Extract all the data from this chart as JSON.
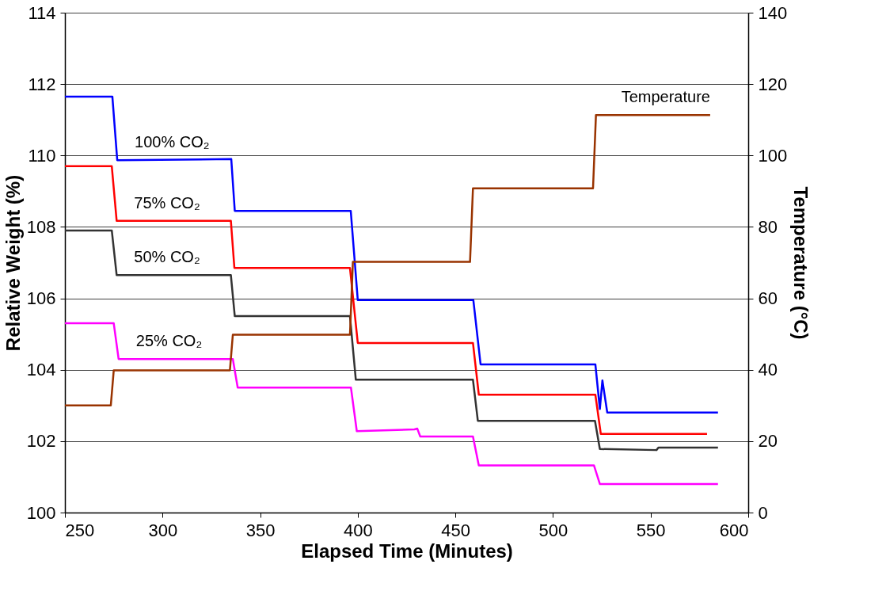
{
  "chart_data": {
    "type": "line",
    "xlabel": "Elapsed Time (Minutes)",
    "ylabel": "Relative Weight (%)",
    "y2label": "Temperature (°C)",
    "xlim": [
      250,
      600
    ],
    "xticks": [
      250,
      300,
      350,
      400,
      450,
      500,
      550,
      600
    ],
    "ylim": [
      100,
      114
    ],
    "yticks": [
      100,
      102,
      104,
      106,
      108,
      110,
      112,
      114
    ],
    "y2lim": [
      0,
      140
    ],
    "y2ticks": [
      0,
      20,
      40,
      60,
      80,
      100,
      120,
      140
    ],
    "grid": "y",
    "legend": false,
    "line_style": "solid",
    "series": [
      {
        "name": "100% CO₂",
        "color": "#0000ff",
        "x": [
          250,
          274.3,
          276.8,
          335.2,
          337,
          396.4,
          400,
          459.2,
          462.9,
          521.7,
          524,
          525.3,
          527.8,
          584.5
        ],
        "values": [
          111.65,
          111.65,
          109.87,
          109.9,
          108.45,
          108.45,
          105.95,
          105.95,
          104.15,
          104.15,
          102.9,
          103.7,
          102.8,
          102.8
        ]
      },
      {
        "name": "75% CO₂",
        "color": "#ff0000",
        "x": [
          250,
          274,
          276.5,
          335,
          336.8,
          396,
          400,
          459,
          462,
          521.7,
          524.5,
          578.9
        ],
        "values": [
          109.7,
          109.7,
          108.17,
          108.17,
          106.85,
          106.85,
          104.75,
          104.75,
          103.3,
          103.3,
          102.2,
          102.2
        ]
      },
      {
        "name": "50% CO₂",
        "color": "#333333",
        "x": [
          250,
          274,
          276.5,
          335,
          337,
          396,
          399,
          459,
          461.5,
          521.5,
          524,
          553,
          554,
          584.5
        ],
        "values": [
          107.9,
          107.9,
          106.65,
          106.65,
          105.5,
          105.5,
          103.72,
          103.72,
          102.57,
          102.57,
          101.78,
          101.75,
          101.82,
          101.82
        ]
      },
      {
        "name": "25% CO₂",
        "color": "#ff00ff",
        "x": [
          250,
          275,
          277.5,
          336,
          338.5,
          396.5,
          399.5,
          429,
          430.5,
          432,
          459,
          462,
          521,
          524,
          584.5
        ],
        "values": [
          105.3,
          105.3,
          104.3,
          104.3,
          103.5,
          103.5,
          102.28,
          102.33,
          102.35,
          102.13,
          102.13,
          101.32,
          101.32,
          100.8,
          100.8
        ]
      },
      {
        "name": "Temperature",
        "color": "#993300",
        "axis": "y2",
        "x": [
          250,
          273.5,
          275,
          334.5,
          336,
          396,
          397.5,
          457.5,
          459,
          520.5,
          522,
          580.5
        ],
        "values": [
          30,
          30,
          39.8,
          39.8,
          49.8,
          49.8,
          70.2,
          70.2,
          90.8,
          90.8,
          111.3,
          111.3
        ]
      }
    ]
  }
}
